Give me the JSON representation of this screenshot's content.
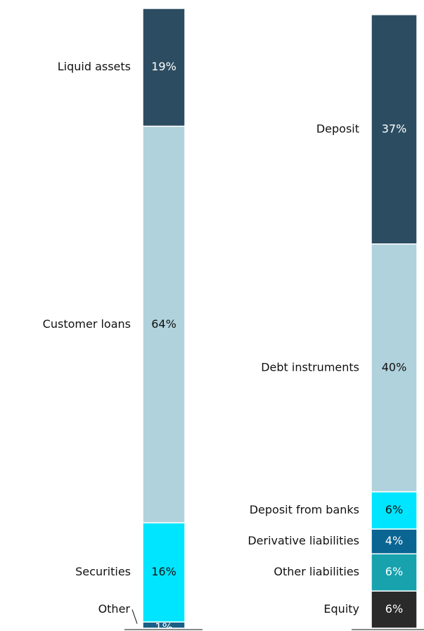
{
  "chart_data": [
    {
      "type": "stacked_bar",
      "categories": [
        null
      ],
      "ylim": [
        0,
        100
      ],
      "series": [
        {
          "name": "Other",
          "color": "#1a5f86",
          "values": [
            1
          ],
          "value_labels": [
            "1%"
          ]
        },
        {
          "name": "Securities",
          "color": "#00e5ff",
          "values": [
            16
          ],
          "value_labels": [
            "16%"
          ]
        },
        {
          "name": "Customer loans",
          "color": "#b0d2dc",
          "values": [
            64
          ],
          "value_labels": [
            "64%"
          ]
        },
        {
          "name": "Liquid assets",
          "color": "#2c4c61",
          "values": [
            19
          ],
          "value_labels": [
            "19%"
          ]
        }
      ]
    },
    {
      "type": "stacked_bar",
      "categories": [
        null
      ],
      "ylim": [
        0,
        100
      ],
      "series": [
        {
          "name": "Equity",
          "color": "#2a2a2a",
          "values": [
            6
          ],
          "value_labels": [
            "6%"
          ]
        },
        {
          "name": "Other liabilities",
          "color": "#17a2ae",
          "values": [
            6
          ],
          "value_labels": [
            "6%"
          ]
        },
        {
          "name": "Derivative liabilities",
          "color": "#0a6592",
          "values": [
            4
          ],
          "value_labels": [
            "4%"
          ]
        },
        {
          "name": "Deposit from banks",
          "color": "#00e5ff",
          "values": [
            6
          ],
          "value_labels": [
            "6%"
          ]
        },
        {
          "name": "Debt instruments",
          "color": "#b0d2dc",
          "values": [
            40
          ],
          "value_labels": [
            "40%"
          ]
        },
        {
          "name": "Deposit",
          "color": "#2c4c61",
          "values": [
            37
          ],
          "value_labels": [
            "37%"
          ]
        }
      ]
    }
  ]
}
